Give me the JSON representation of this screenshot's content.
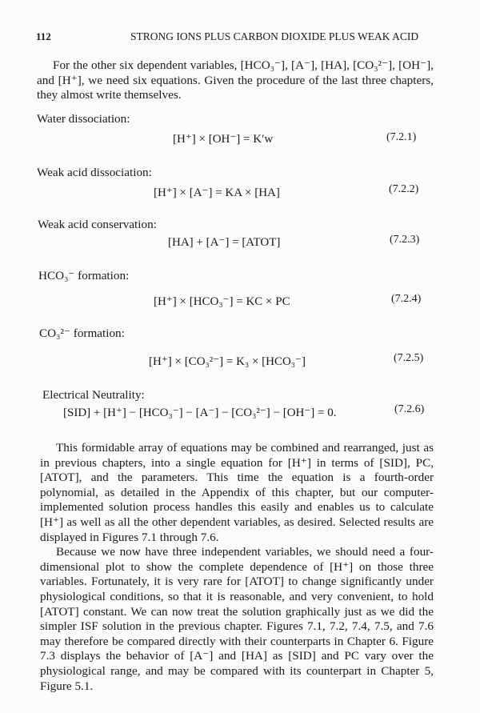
{
  "header": {
    "page_number": "112",
    "running_title": "STRONG IONS PLUS CARBON DIOXIDE PLUS WEAK ACID"
  },
  "intro_paragraph": "For the other six dependent variables, [HCO₃⁻], [A⁻], [HA], [CO₃²⁻], [OH⁻], and [H⁺], we need six equations. Given the procedure of the last three chapters, they almost write themselves.",
  "equations": [
    {
      "label": "Water dissociation:",
      "equation": "[H⁺] × [OH⁻] = K′w",
      "number": "(7.2.1)"
    },
    {
      "label": "Weak acid dissociation:",
      "equation": "[H⁺] × [A⁻] = KA × [HA]",
      "number": "(7.2.2)"
    },
    {
      "label": "Weak acid conservation:",
      "equation": "[HA] + [A⁻] = [ATOT]",
      "number": "(7.2.3)"
    },
    {
      "label": "HCO₃⁻ formation:",
      "equation": "[H⁺] × [HCO₃⁻] = KC × PC",
      "number": "(7.2.4)"
    },
    {
      "label": "CO₃²⁻ formation:",
      "equation": "[H⁺] × [CO₃²⁻] = K₃ × [HCO₃⁻]",
      "number": "(7.2.5)"
    },
    {
      "label": "Electrical Neutrality:",
      "equation": "[SID] + [H⁺] − [HCO₃⁻] − [A⁻] − [CO₃²⁻] − [OH⁻] = 0.",
      "number": "(7.2.6)"
    }
  ],
  "body_paragraphs": [
    "This formidable array of equations may be combined and rearranged, just as in previous chapters, into a single equation for [H⁺] in terms of [SID], PC, [ATOT], and the parameters. This time the equation is a fourth-order polynomial, as detailed in the Appendix of this chapter, but our computer-implemented solution process handles this easily and enables us to calculate [H⁺] as well as all the other dependent variables, as desired. Selected results are displayed in Figures 7.1 through 7.6.",
    "Because we now have three independent variables, we should need a four-dimensional plot to show the complete dependence of [H⁺] on those three variables. Fortunately, it is very rare for [ATOT] to change significantly under physiological conditions, so that it is reasonable, and very convenient, to hold [ATOT] constant. We can now treat the solution graphically just as we did the simpler ISF solution in the previous chapter. Figures 7.1, 7.2, 7.4, 7.5, and 7.6 may therefore be compared directly with their counterparts in Chapter 6. Figure 7.3 displays the behavior of [A⁻] and [HA] as [SID] and PC vary over the physiological range, and may be compared with its counterpart in Chapter 5, Figure 5.1."
  ]
}
